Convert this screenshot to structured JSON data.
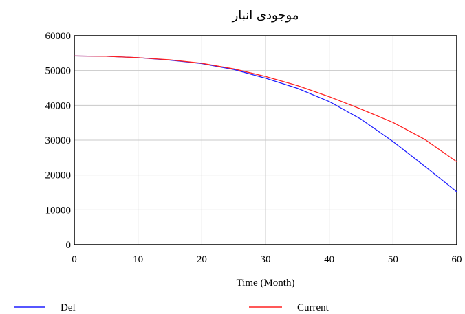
{
  "chart_data": {
    "type": "line",
    "title": "موجودی انبار",
    "xlabel": "Time (Month)",
    "ylabel": "",
    "xlim": [
      0,
      60
    ],
    "ylim": [
      0,
      60000
    ],
    "xticks": [
      "0",
      "10",
      "20",
      "30",
      "40",
      "50",
      "60"
    ],
    "yticks": [
      "0",
      "10000",
      "20000",
      "30000",
      "40000",
      "50000",
      "60000"
    ],
    "grid": true,
    "legend_position": "bottom",
    "series": [
      {
        "name": "Del",
        "color": "#1f1fff",
        "x": [
          0,
          5,
          10,
          15,
          20,
          25,
          30,
          35,
          40,
          45,
          50,
          55,
          60
        ],
        "y": [
          54200,
          54100,
          53700,
          53000,
          52000,
          50300,
          47800,
          44900,
          41100,
          36000,
          29600,
          22500,
          15200
        ]
      },
      {
        "name": "Current",
        "color": "#ff2020",
        "x": [
          0,
          5,
          10,
          15,
          20,
          25,
          30,
          35,
          40,
          45,
          50,
          55,
          60
        ],
        "y": [
          54200,
          54100,
          53700,
          53100,
          52100,
          50500,
          48300,
          45700,
          42500,
          38900,
          35100,
          30200,
          23800
        ]
      }
    ]
  }
}
